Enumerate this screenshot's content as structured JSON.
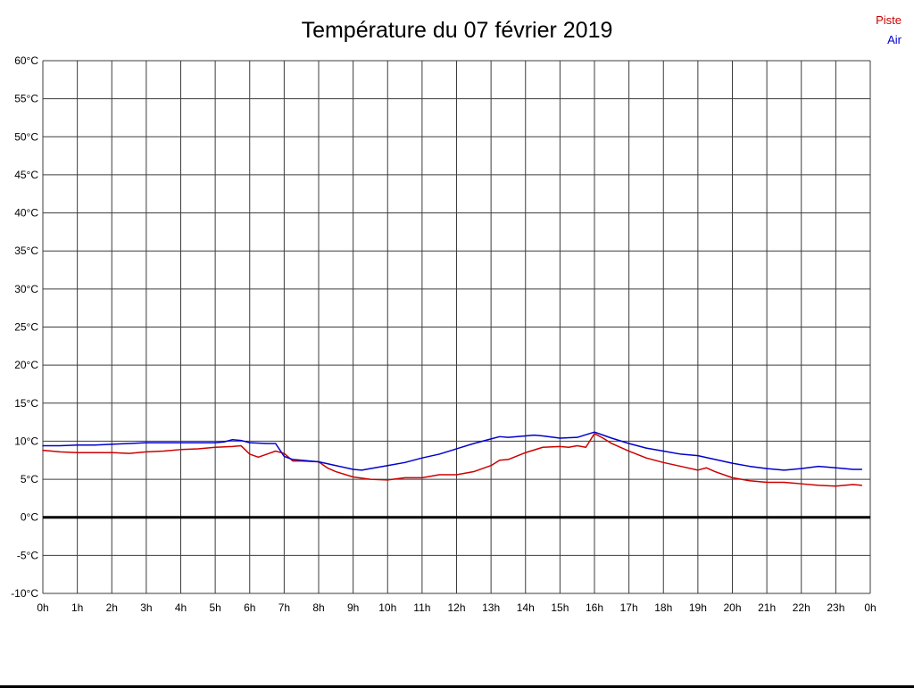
{
  "chart_data": {
    "type": "line",
    "title": "Température du 07 février 2019",
    "xlabel": "",
    "ylabel": "",
    "xlim": [
      0,
      24
    ],
    "ylim": [
      -10,
      60
    ],
    "grid": true,
    "grid_color": "#3c3c3c",
    "zero_line": {
      "value": 0,
      "color": "#000000",
      "width": 3
    },
    "legend_position": "top-right",
    "ytick_values": [
      60,
      55,
      50,
      45,
      40,
      35,
      30,
      25,
      20,
      15,
      10,
      5,
      0,
      -5,
      -10
    ],
    "ytick_labels": [
      "60°C",
      "55°C",
      "50°C",
      "45°C",
      "40°C",
      "35°C",
      "30°C",
      "25°C",
      "20°C",
      "15°C",
      "10°C",
      "5°C",
      "0°C",
      "-5°C",
      "-10°C"
    ],
    "xtick_values": [
      0,
      1,
      2,
      3,
      4,
      5,
      6,
      7,
      8,
      9,
      10,
      11,
      12,
      13,
      14,
      15,
      16,
      17,
      18,
      19,
      20,
      21,
      22,
      23,
      24
    ],
    "xtick_labels": [
      "0h",
      "1h",
      "2h",
      "3h",
      "4h",
      "5h",
      "6h",
      "7h",
      "8h",
      "9h",
      "10h",
      "11h",
      "12h",
      "13h",
      "14h",
      "15h",
      "16h",
      "17h",
      "18h",
      "19h",
      "20h",
      "21h",
      "22h",
      "23h",
      "0h"
    ],
    "series": [
      {
        "name": "Piste",
        "color": "#cc0000",
        "points": [
          [
            0,
            8.8
          ],
          [
            0.5,
            8.6
          ],
          [
            1,
            8.5
          ],
          [
            1.5,
            8.5
          ],
          [
            2,
            8.5
          ],
          [
            2.5,
            8.4
          ],
          [
            3,
            8.6
          ],
          [
            3.5,
            8.7
          ],
          [
            4,
            8.9
          ],
          [
            4.5,
            9.0
          ],
          [
            5,
            9.2
          ],
          [
            5.5,
            9.3
          ],
          [
            5.75,
            9.4
          ],
          [
            6,
            8.3
          ],
          [
            6.25,
            7.9
          ],
          [
            6.5,
            8.3
          ],
          [
            6.75,
            8.7
          ],
          [
            7,
            8.4
          ],
          [
            7.25,
            7.4
          ],
          [
            7.5,
            7.4
          ],
          [
            8,
            7.3
          ],
          [
            8.25,
            6.5
          ],
          [
            8.5,
            6.0
          ],
          [
            9,
            5.3
          ],
          [
            9.5,
            5.0
          ],
          [
            10,
            4.9
          ],
          [
            10.5,
            5.2
          ],
          [
            11,
            5.2
          ],
          [
            11.5,
            5.6
          ],
          [
            12,
            5.6
          ],
          [
            12.5,
            6.0
          ],
          [
            13,
            6.8
          ],
          [
            13.25,
            7.5
          ],
          [
            13.5,
            7.6
          ],
          [
            14,
            8.5
          ],
          [
            14.5,
            9.2
          ],
          [
            15,
            9.3
          ],
          [
            15.25,
            9.2
          ],
          [
            15.5,
            9.4
          ],
          [
            15.75,
            9.2
          ],
          [
            16,
            11.0
          ],
          [
            16.25,
            10.4
          ],
          [
            16.5,
            9.7
          ],
          [
            17,
            8.7
          ],
          [
            17.5,
            7.8
          ],
          [
            18,
            7.2
          ],
          [
            18.5,
            6.7
          ],
          [
            19,
            6.2
          ],
          [
            19.25,
            6.5
          ],
          [
            19.5,
            6.0
          ],
          [
            20,
            5.2
          ],
          [
            20.5,
            4.8
          ],
          [
            21,
            4.6
          ],
          [
            21.5,
            4.6
          ],
          [
            22,
            4.4
          ],
          [
            22.5,
            4.2
          ],
          [
            23,
            4.1
          ],
          [
            23.5,
            4.3
          ],
          [
            23.75,
            4.2
          ]
        ]
      },
      {
        "name": "Air",
        "color": "#0000cc",
        "points": [
          [
            0,
            9.4
          ],
          [
            0.5,
            9.4
          ],
          [
            1,
            9.5
          ],
          [
            1.5,
            9.5
          ],
          [
            2,
            9.6
          ],
          [
            2.5,
            9.7
          ],
          [
            3,
            9.8
          ],
          [
            3.5,
            9.8
          ],
          [
            4,
            9.8
          ],
          [
            4.5,
            9.8
          ],
          [
            5,
            9.8
          ],
          [
            5.25,
            9.9
          ],
          [
            5.5,
            10.2
          ],
          [
            5.75,
            10.1
          ],
          [
            6,
            9.8
          ],
          [
            6.5,
            9.7
          ],
          [
            6.75,
            9.7
          ],
          [
            7,
            8.0
          ],
          [
            7.25,
            7.6
          ],
          [
            7.5,
            7.5
          ],
          [
            8,
            7.3
          ],
          [
            8.5,
            6.8
          ],
          [
            9,
            6.3
          ],
          [
            9.25,
            6.2
          ],
          [
            9.5,
            6.4
          ],
          [
            10,
            6.8
          ],
          [
            10.5,
            7.2
          ],
          [
            11,
            7.8
          ],
          [
            11.5,
            8.3
          ],
          [
            12,
            9.0
          ],
          [
            12.5,
            9.7
          ],
          [
            13,
            10.3
          ],
          [
            13.25,
            10.6
          ],
          [
            13.5,
            10.5
          ],
          [
            14,
            10.7
          ],
          [
            14.25,
            10.8
          ],
          [
            14.5,
            10.7
          ],
          [
            15,
            10.4
          ],
          [
            15.5,
            10.5
          ],
          [
            16,
            11.2
          ],
          [
            16.25,
            10.8
          ],
          [
            16.5,
            10.4
          ],
          [
            17,
            9.7
          ],
          [
            17.5,
            9.1
          ],
          [
            18,
            8.7
          ],
          [
            18.5,
            8.3
          ],
          [
            19,
            8.1
          ],
          [
            19.5,
            7.6
          ],
          [
            20,
            7.1
          ],
          [
            20.5,
            6.7
          ],
          [
            21,
            6.4
          ],
          [
            21.5,
            6.2
          ],
          [
            22,
            6.4
          ],
          [
            22.5,
            6.7
          ],
          [
            23,
            6.5
          ],
          [
            23.5,
            6.3
          ],
          [
            23.75,
            6.3
          ]
        ]
      }
    ]
  }
}
